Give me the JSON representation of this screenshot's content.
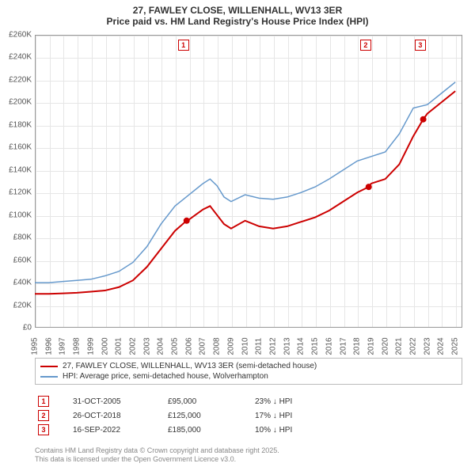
{
  "title": {
    "line1": "27, FAWLEY CLOSE, WILLENHALL, WV13 3ER",
    "line2": "Price paid vs. HM Land Registry's House Price Index (HPI)"
  },
  "chart": {
    "type": "line",
    "background_color": "#ffffff",
    "grid_color": "#e6e6e6",
    "border_color": "#999999",
    "xlim": [
      1995,
      2025.5
    ],
    "ylim": [
      0,
      260000
    ],
    "ytick_step": 20000,
    "yticks": [
      "£0",
      "£20K",
      "£40K",
      "£60K",
      "£80K",
      "£100K",
      "£120K",
      "£140K",
      "£160K",
      "£180K",
      "£200K",
      "£220K",
      "£240K",
      "£260K"
    ],
    "xticks": [
      1995,
      1996,
      1997,
      1998,
      1999,
      2000,
      2001,
      2002,
      2003,
      2004,
      2005,
      2006,
      2007,
      2008,
      2009,
      2010,
      2011,
      2012,
      2013,
      2014,
      2015,
      2016,
      2017,
      2018,
      2019,
      2020,
      2021,
      2022,
      2023,
      2024,
      2025
    ],
    "series": [
      {
        "name": "price_paid",
        "label": "27, FAWLEY CLOSE, WILLENHALL, WV13 3ER (semi-detached house)",
        "color": "#cc0000",
        "line_width": 2,
        "points": [
          [
            1995,
            30000
          ],
          [
            1996,
            30000
          ],
          [
            1997,
            30500
          ],
          [
            1998,
            31000
          ],
          [
            1999,
            32000
          ],
          [
            2000,
            33000
          ],
          [
            2001,
            36000
          ],
          [
            2002,
            42000
          ],
          [
            2003,
            54000
          ],
          [
            2004,
            70000
          ],
          [
            2005,
            86000
          ],
          [
            2005.83,
            95000
          ],
          [
            2006,
            96000
          ],
          [
            2007,
            105000
          ],
          [
            2007.5,
            108000
          ],
          [
            2008,
            100000
          ],
          [
            2008.5,
            92000
          ],
          [
            2009,
            88000
          ],
          [
            2010,
            95000
          ],
          [
            2011,
            90000
          ],
          [
            2012,
            88000
          ],
          [
            2013,
            90000
          ],
          [
            2014,
            94000
          ],
          [
            2015,
            98000
          ],
          [
            2016,
            104000
          ],
          [
            2017,
            112000
          ],
          [
            2018,
            120000
          ],
          [
            2018.82,
            125000
          ],
          [
            2019,
            128000
          ],
          [
            2020,
            132000
          ],
          [
            2021,
            145000
          ],
          [
            2022,
            170000
          ],
          [
            2022.71,
            185000
          ],
          [
            2023,
            190000
          ],
          [
            2024,
            200000
          ],
          [
            2025,
            210000
          ]
        ],
        "markers": [
          {
            "x": 2005.83,
            "y": 95000
          },
          {
            "x": 2018.82,
            "y": 125000
          },
          {
            "x": 2022.71,
            "y": 185000
          }
        ]
      },
      {
        "name": "hpi",
        "label": "HPI: Average price, semi-detached house, Wolverhampton",
        "color": "#6699cc",
        "line_width": 1.5,
        "points": [
          [
            1995,
            40000
          ],
          [
            1996,
            40000
          ],
          [
            1997,
            41000
          ],
          [
            1998,
            42000
          ],
          [
            1999,
            43000
          ],
          [
            2000,
            46000
          ],
          [
            2001,
            50000
          ],
          [
            2002,
            58000
          ],
          [
            2003,
            72000
          ],
          [
            2004,
            92000
          ],
          [
            2005,
            108000
          ],
          [
            2006,
            118000
          ],
          [
            2007,
            128000
          ],
          [
            2007.5,
            132000
          ],
          [
            2008,
            126000
          ],
          [
            2008.5,
            116000
          ],
          [
            2009,
            112000
          ],
          [
            2010,
            118000
          ],
          [
            2011,
            115000
          ],
          [
            2012,
            114000
          ],
          [
            2013,
            116000
          ],
          [
            2014,
            120000
          ],
          [
            2015,
            125000
          ],
          [
            2016,
            132000
          ],
          [
            2017,
            140000
          ],
          [
            2018,
            148000
          ],
          [
            2019,
            152000
          ],
          [
            2020,
            156000
          ],
          [
            2021,
            172000
          ],
          [
            2022,
            195000
          ],
          [
            2023,
            198000
          ],
          [
            2024,
            208000
          ],
          [
            2025,
            218000
          ]
        ]
      }
    ],
    "annotations": [
      {
        "n": "1",
        "x": 2005.6,
        "color": "#cc0000"
      },
      {
        "n": "2",
        "x": 2018.6,
        "color": "#cc0000"
      },
      {
        "n": "3",
        "x": 2022.5,
        "color": "#cc0000"
      }
    ]
  },
  "legend": {
    "items": [
      {
        "color": "#cc0000",
        "label": "27, FAWLEY CLOSE, WILLENHALL, WV13 3ER (semi-detached house)"
      },
      {
        "color": "#6699cc",
        "label": "HPI: Average price, semi-detached house, Wolverhampton"
      }
    ]
  },
  "sales": [
    {
      "n": "1",
      "color": "#cc0000",
      "date": "31-OCT-2005",
      "price": "£95,000",
      "diff": "23% ↓ HPI"
    },
    {
      "n": "2",
      "color": "#cc0000",
      "date": "26-OCT-2018",
      "price": "£125,000",
      "diff": "17% ↓ HPI"
    },
    {
      "n": "3",
      "color": "#cc0000",
      "date": "16-SEP-2022",
      "price": "£185,000",
      "diff": "10% ↓ HPI"
    }
  ],
  "footer": {
    "line1": "Contains HM Land Registry data © Crown copyright and database right 2025.",
    "line2": "This data is licensed under the Open Government Licence v3.0."
  }
}
